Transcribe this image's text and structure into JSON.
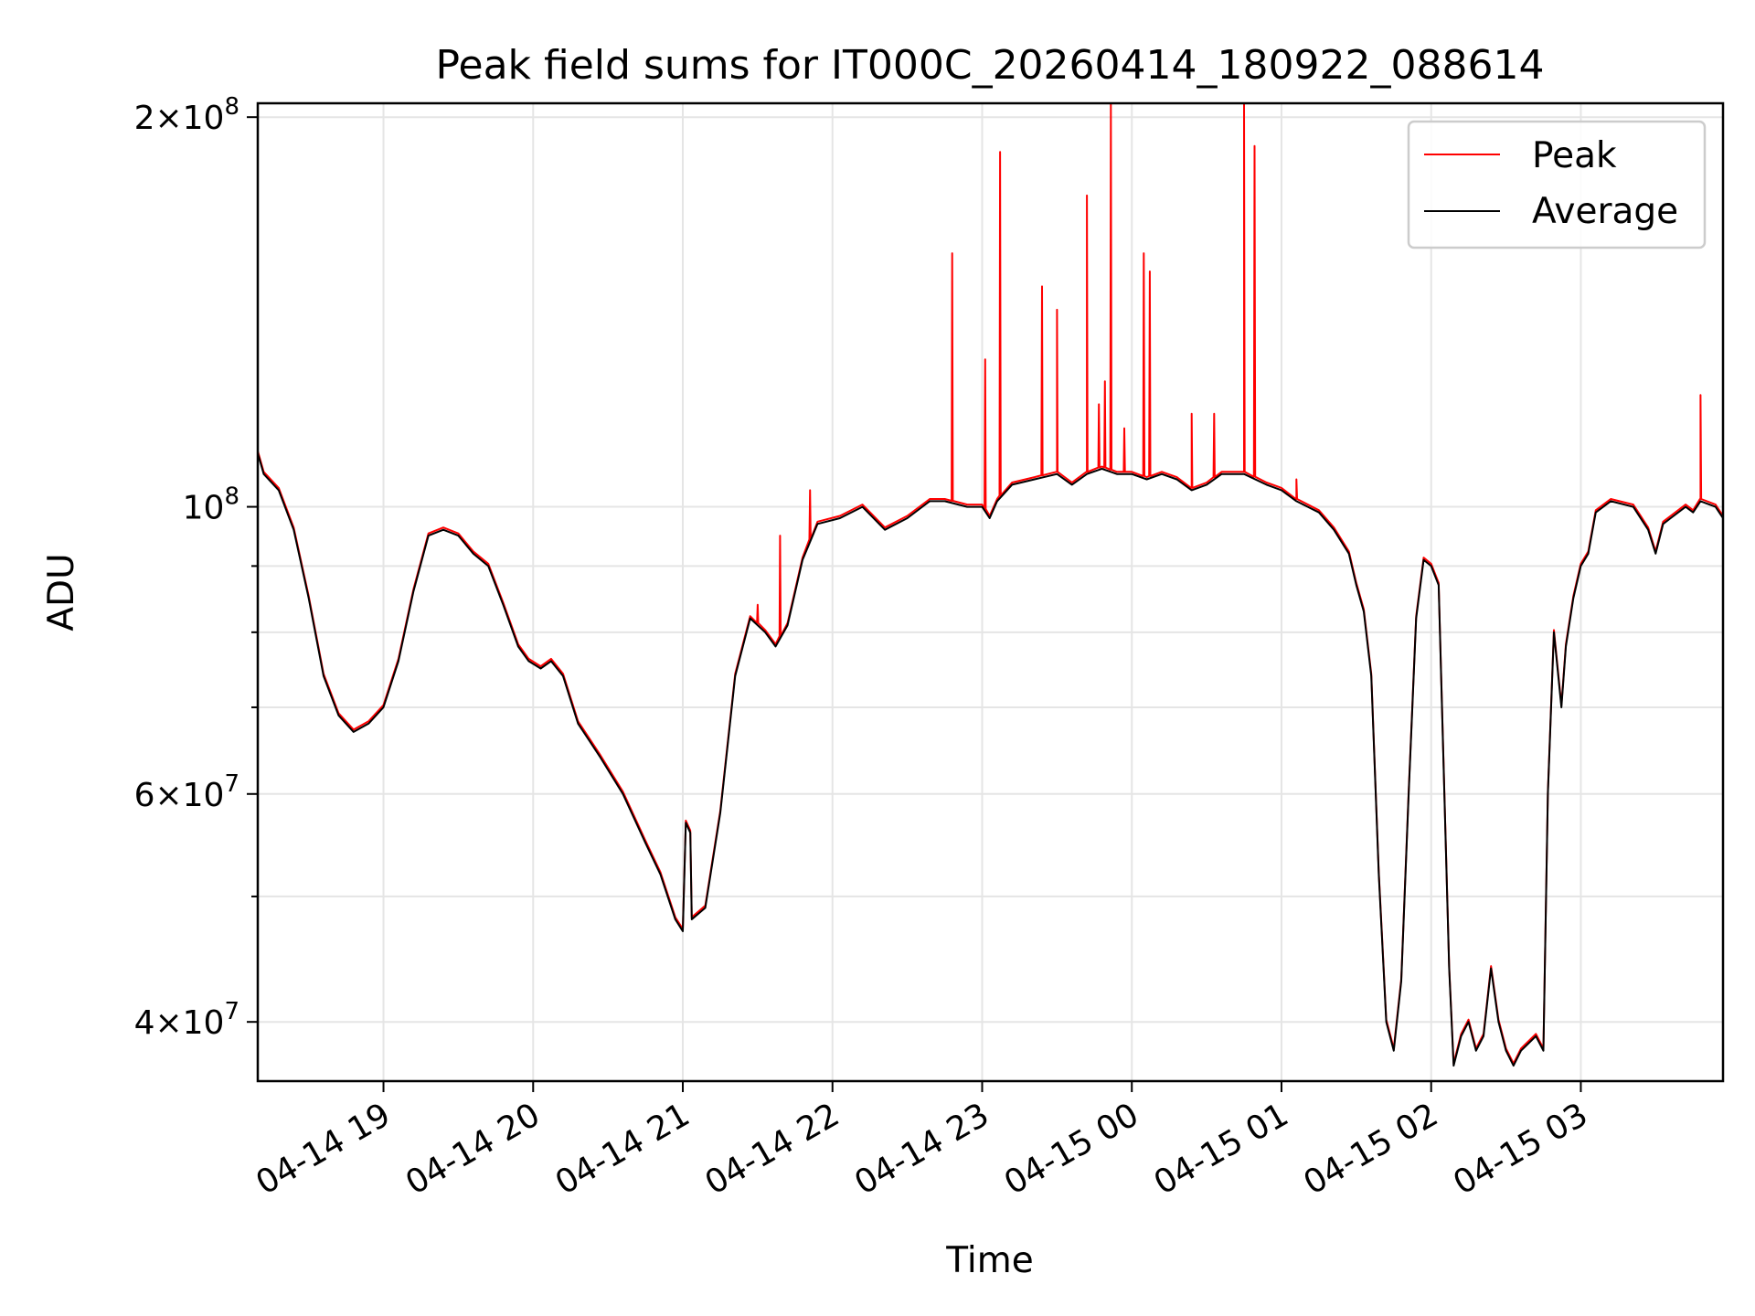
{
  "chart_data": {
    "type": "line",
    "title": "Peak field sums for IT000C_20260414_180922_088614",
    "xlabel": "Time",
    "ylabel": "ADU",
    "yscale": "log",
    "grid": true,
    "legend_position": "top-right",
    "xlim_hours": [
      18.16,
      27.95
    ],
    "ylim": [
      36000000,
      205000000
    ],
    "x_ticks": [
      {
        "value": 19,
        "label": "04-14 19"
      },
      {
        "value": 20,
        "label": "04-14 20"
      },
      {
        "value": 21,
        "label": "04-14 21"
      },
      {
        "value": 22,
        "label": "04-14 22"
      },
      {
        "value": 23,
        "label": "04-14 23"
      },
      {
        "value": 24,
        "label": "04-15 00"
      },
      {
        "value": 25,
        "label": "04-15 01"
      },
      {
        "value": 26,
        "label": "04-15 02"
      },
      {
        "value": 27,
        "label": "04-15 03"
      }
    ],
    "y_major_ticks": [
      {
        "value": 40000000,
        "base": "4",
        "exp": "7"
      },
      {
        "value": 60000000,
        "base": "6",
        "exp": "7"
      },
      {
        "value": 100000000,
        "base": "",
        "exp": "8"
      },
      {
        "value": 200000000,
        "base": "2",
        "exp": "8"
      }
    ],
    "y_minor_ticks": [
      50000000,
      70000000,
      80000000,
      90000000
    ],
    "colors": {
      "peak": "#ff0000",
      "average": "#000000"
    },
    "series": [
      {
        "name": "Average",
        "key": "average",
        "points": [
          [
            18.16,
            110000000
          ],
          [
            18.2,
            106000000
          ],
          [
            18.3,
            103000000
          ],
          [
            18.4,
            96000000
          ],
          [
            18.5,
            85000000
          ],
          [
            18.6,
            74000000
          ],
          [
            18.7,
            69000000
          ],
          [
            18.8,
            67000000
          ],
          [
            18.9,
            68000000
          ],
          [
            19.0,
            70000000
          ],
          [
            19.1,
            76000000
          ],
          [
            19.2,
            86000000
          ],
          [
            19.3,
            95000000
          ],
          [
            19.4,
            96000000
          ],
          [
            19.5,
            95000000
          ],
          [
            19.6,
            92000000
          ],
          [
            19.7,
            90000000
          ],
          [
            19.8,
            84000000
          ],
          [
            19.9,
            78000000
          ],
          [
            19.97,
            76000000
          ],
          [
            20.05,
            75000000
          ],
          [
            20.12,
            76000000
          ],
          [
            20.2,
            74000000
          ],
          [
            20.3,
            68000000
          ],
          [
            20.45,
            64000000
          ],
          [
            20.6,
            60000000
          ],
          [
            20.75,
            55000000
          ],
          [
            20.85,
            52000000
          ],
          [
            20.95,
            48000000
          ],
          [
            21.0,
            47000000
          ],
          [
            21.02,
            57000000
          ],
          [
            21.05,
            56000000
          ],
          [
            21.06,
            48000000
          ],
          [
            21.15,
            49000000
          ],
          [
            21.25,
            58000000
          ],
          [
            21.35,
            74000000
          ],
          [
            21.45,
            82000000
          ],
          [
            21.55,
            80000000
          ],
          [
            21.62,
            78000000
          ],
          [
            21.7,
            81000000
          ],
          [
            21.8,
            91000000
          ],
          [
            21.9,
            97000000
          ],
          [
            22.05,
            98000000
          ],
          [
            22.2,
            100000000
          ],
          [
            22.35,
            96000000
          ],
          [
            22.5,
            98000000
          ],
          [
            22.65,
            101000000
          ],
          [
            22.75,
            101000000
          ],
          [
            22.9,
            100000000
          ],
          [
            23.0,
            100000000
          ],
          [
            23.05,
            98000000
          ],
          [
            23.1,
            101000000
          ],
          [
            23.2,
            104000000
          ],
          [
            23.35,
            105000000
          ],
          [
            23.5,
            106000000
          ],
          [
            23.6,
            104000000
          ],
          [
            23.7,
            106000000
          ],
          [
            23.8,
            107000000
          ],
          [
            23.9,
            106000000
          ],
          [
            24.0,
            106000000
          ],
          [
            24.1,
            105000000
          ],
          [
            24.2,
            106000000
          ],
          [
            24.3,
            105000000
          ],
          [
            24.4,
            103000000
          ],
          [
            24.5,
            104000000
          ],
          [
            24.6,
            106000000
          ],
          [
            24.75,
            106000000
          ],
          [
            24.9,
            104000000
          ],
          [
            25.0,
            103000000
          ],
          [
            25.1,
            101000000
          ],
          [
            25.25,
            99000000
          ],
          [
            25.35,
            96000000
          ],
          [
            25.45,
            92000000
          ],
          [
            25.5,
            87000000
          ],
          [
            25.55,
            83000000
          ],
          [
            25.6,
            74000000
          ],
          [
            25.65,
            52000000
          ],
          [
            25.7,
            40000000
          ],
          [
            25.75,
            38000000
          ],
          [
            25.8,
            43000000
          ],
          [
            25.85,
            60000000
          ],
          [
            25.9,
            82000000
          ],
          [
            25.95,
            91000000
          ],
          [
            26.0,
            90000000
          ],
          [
            26.05,
            87000000
          ],
          [
            26.08,
            65000000
          ],
          [
            26.12,
            44000000
          ],
          [
            26.15,
            37000000
          ],
          [
            26.2,
            39000000
          ],
          [
            26.25,
            40000000
          ],
          [
            26.3,
            38000000
          ],
          [
            26.35,
            39000000
          ],
          [
            26.4,
            44000000
          ],
          [
            26.45,
            40000000
          ],
          [
            26.5,
            38000000
          ],
          [
            26.55,
            37000000
          ],
          [
            26.6,
            38000000
          ],
          [
            26.7,
            39000000
          ],
          [
            26.75,
            38000000
          ],
          [
            26.78,
            60000000
          ],
          [
            26.82,
            80000000
          ],
          [
            26.87,
            70000000
          ],
          [
            26.9,
            78000000
          ],
          [
            26.95,
            85000000
          ],
          [
            27.0,
            90000000
          ],
          [
            27.05,
            92000000
          ],
          [
            27.1,
            99000000
          ],
          [
            27.2,
            101000000
          ],
          [
            27.35,
            100000000
          ],
          [
            27.45,
            96000000
          ],
          [
            27.5,
            92000000
          ],
          [
            27.55,
            97000000
          ],
          [
            27.6,
            98000000
          ],
          [
            27.7,
            100000000
          ],
          [
            27.75,
            99000000
          ],
          [
            27.8,
            101000000
          ],
          [
            27.9,
            100000000
          ],
          [
            27.95,
            98000000
          ]
        ]
      },
      {
        "name": "Peak",
        "key": "peak",
        "spikes": [
          [
            21.5,
            84000000
          ],
          [
            21.65,
            95000000
          ],
          [
            21.85,
            103000000
          ],
          [
            22.8,
            157000000
          ],
          [
            23.02,
            130000000
          ],
          [
            23.12,
            188000000
          ],
          [
            23.4,
            148000000
          ],
          [
            23.5,
            142000000
          ],
          [
            23.7,
            174000000
          ],
          [
            23.78,
            120000000
          ],
          [
            23.82,
            125000000
          ],
          [
            23.86,
            205000000
          ],
          [
            23.95,
            115000000
          ],
          [
            24.08,
            157000000
          ],
          [
            24.12,
            152000000
          ],
          [
            24.4,
            118000000
          ],
          [
            24.55,
            118000000
          ],
          [
            24.75,
            205000000
          ],
          [
            24.82,
            190000000
          ],
          [
            25.1,
            105000000
          ],
          [
            27.8,
            122000000
          ]
        ]
      }
    ]
  }
}
